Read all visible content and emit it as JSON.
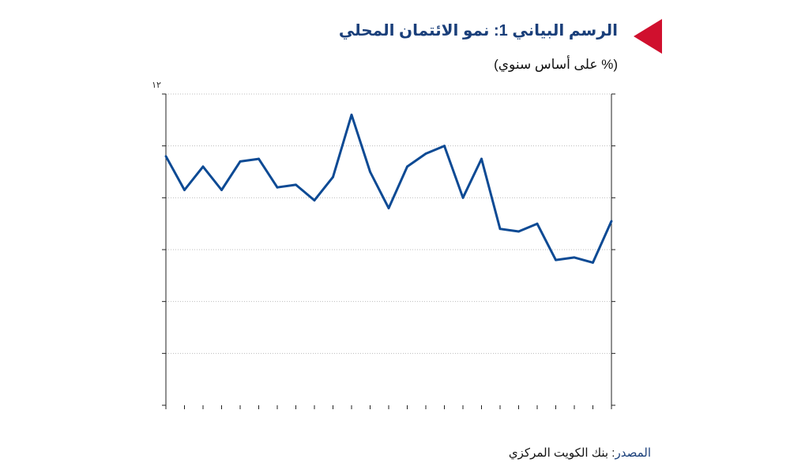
{
  "header": {
    "title": "الرسم البياني 1: نمو الائتمان المحلي",
    "marker_color": "#d0102e"
  },
  "colors": {
    "title": "#1a3f7a",
    "line": "#0d4a94",
    "grid": "#bdbdbd",
    "axis": "#222222"
  },
  "source": {
    "label": "المصدر",
    "separator": ": ",
    "text": "بنك الكويت المركزي"
  },
  "chart_data": {
    "type": "line",
    "title": "الرسم البياني 1: نمو الائتمان المحلي",
    "subtitle": "(% على أساس سنوي)",
    "xlabel": "",
    "ylabel": "",
    "top_tick_label": "١٢",
    "ylim": [
      0,
      12
    ],
    "yticks": [
      0,
      2,
      4,
      6,
      8,
      10,
      12
    ],
    "grid": true,
    "x": [
      1,
      2,
      3,
      4,
      5,
      6,
      7,
      8,
      9,
      10,
      11,
      12,
      13,
      14,
      15,
      16,
      17,
      18,
      19,
      20,
      21,
      22,
      23,
      24,
      25
    ],
    "series": [
      {
        "values": [
          9.6,
          8.3,
          9.2,
          8.3,
          9.4,
          9.5,
          8.4,
          8.5,
          7.9,
          8.8,
          11.2,
          9.0,
          7.6,
          9.2,
          9.7,
          10.0,
          8.0,
          9.5,
          6.8,
          6.7,
          7.0,
          5.6,
          5.7,
          5.5,
          7.1
        ]
      }
    ]
  }
}
